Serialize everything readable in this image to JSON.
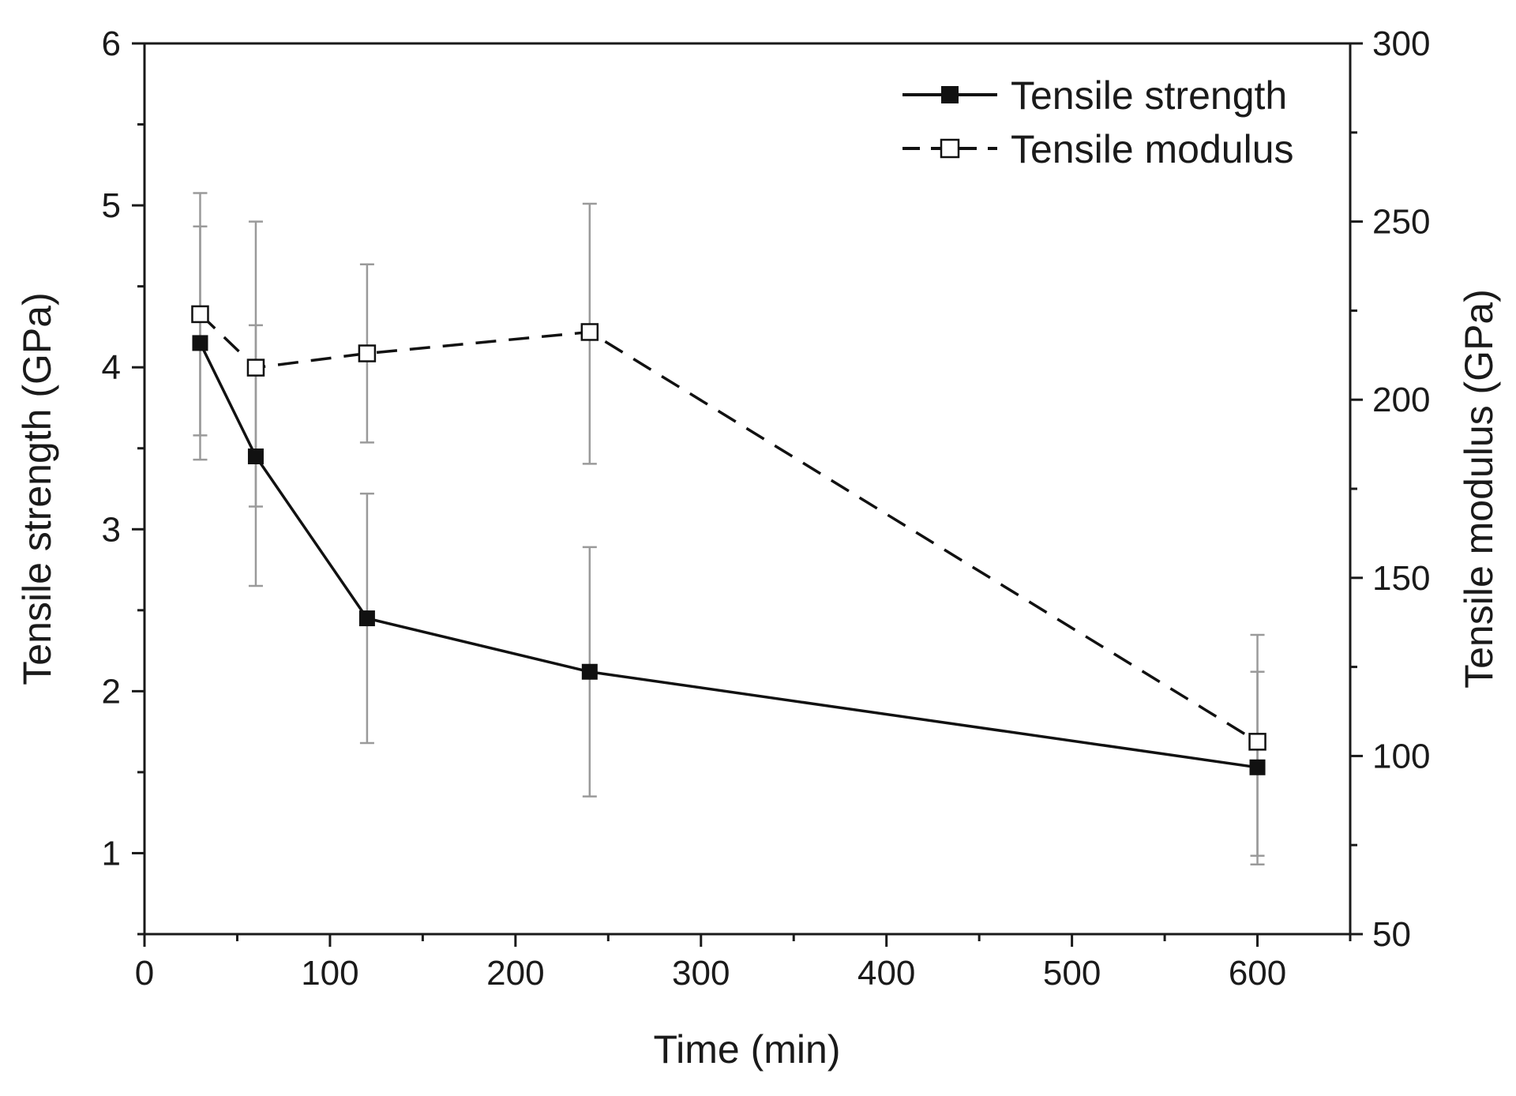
{
  "chart_data": {
    "type": "line",
    "xlabel": "Time (min)",
    "ylabel_left": "Tensile strength (GPa)",
    "ylabel_right": "Tensile modulus (GPa)",
    "xlim": [
      0,
      650
    ],
    "ylim_left": [
      0.5,
      6
    ],
    "ylim_right": [
      50,
      300
    ],
    "x_ticks": [
      0,
      100,
      200,
      300,
      400,
      500,
      600
    ],
    "y_left_ticks": [
      1,
      2,
      3,
      4,
      5,
      6
    ],
    "y_right_ticks": [
      50,
      100,
      150,
      200,
      250,
      300
    ],
    "legend_position": "top-right",
    "series": [
      {
        "name": "Tensile strength",
        "axis": "left",
        "style": "solid",
        "marker": "filled-square",
        "color": "#111111",
        "x": [
          30,
          60,
          120,
          240,
          600
        ],
        "y": [
          4.15,
          3.45,
          2.45,
          2.12,
          1.53
        ],
        "err_low": [
          3.43,
          2.65,
          1.68,
          1.35,
          0.93
        ],
        "err_high": [
          4.87,
          4.26,
          3.22,
          2.89,
          2.12
        ]
      },
      {
        "name": "Tensile modulus",
        "axis": "right",
        "style": "dashed",
        "marker": "open-square",
        "color": "#111111",
        "x": [
          30,
          60,
          120,
          240,
          600
        ],
        "y": [
          224,
          209,
          213,
          219,
          104
        ],
        "err_low": [
          190,
          170,
          188,
          182,
          72
        ],
        "err_high": [
          258,
          250,
          238,
          255,
          134
        ]
      }
    ]
  }
}
